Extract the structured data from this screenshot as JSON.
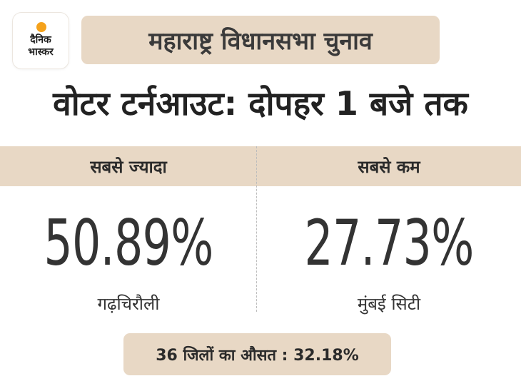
{
  "logo": {
    "line1": "दैनिक",
    "line2": "भास्कर",
    "dot_color": "#f5a21b"
  },
  "section_tag": "महाराष्ट्र विधानसभा चुनाव",
  "headline": "वोटर टर्नआउट: दोपहर 1 बजे तक",
  "highest": {
    "label": "सबसे ज्यादा",
    "value": "50.89%",
    "district": "गढ़चिरौली"
  },
  "lowest": {
    "label": "सबसे कम",
    "value": "27.73%",
    "district": "मुंबई सिटी"
  },
  "average": "36 जिलों का औसत : 32.18%",
  "colors": {
    "accent_beige": "#e8d8c5",
    "text_dark": "#2b2b2b"
  }
}
